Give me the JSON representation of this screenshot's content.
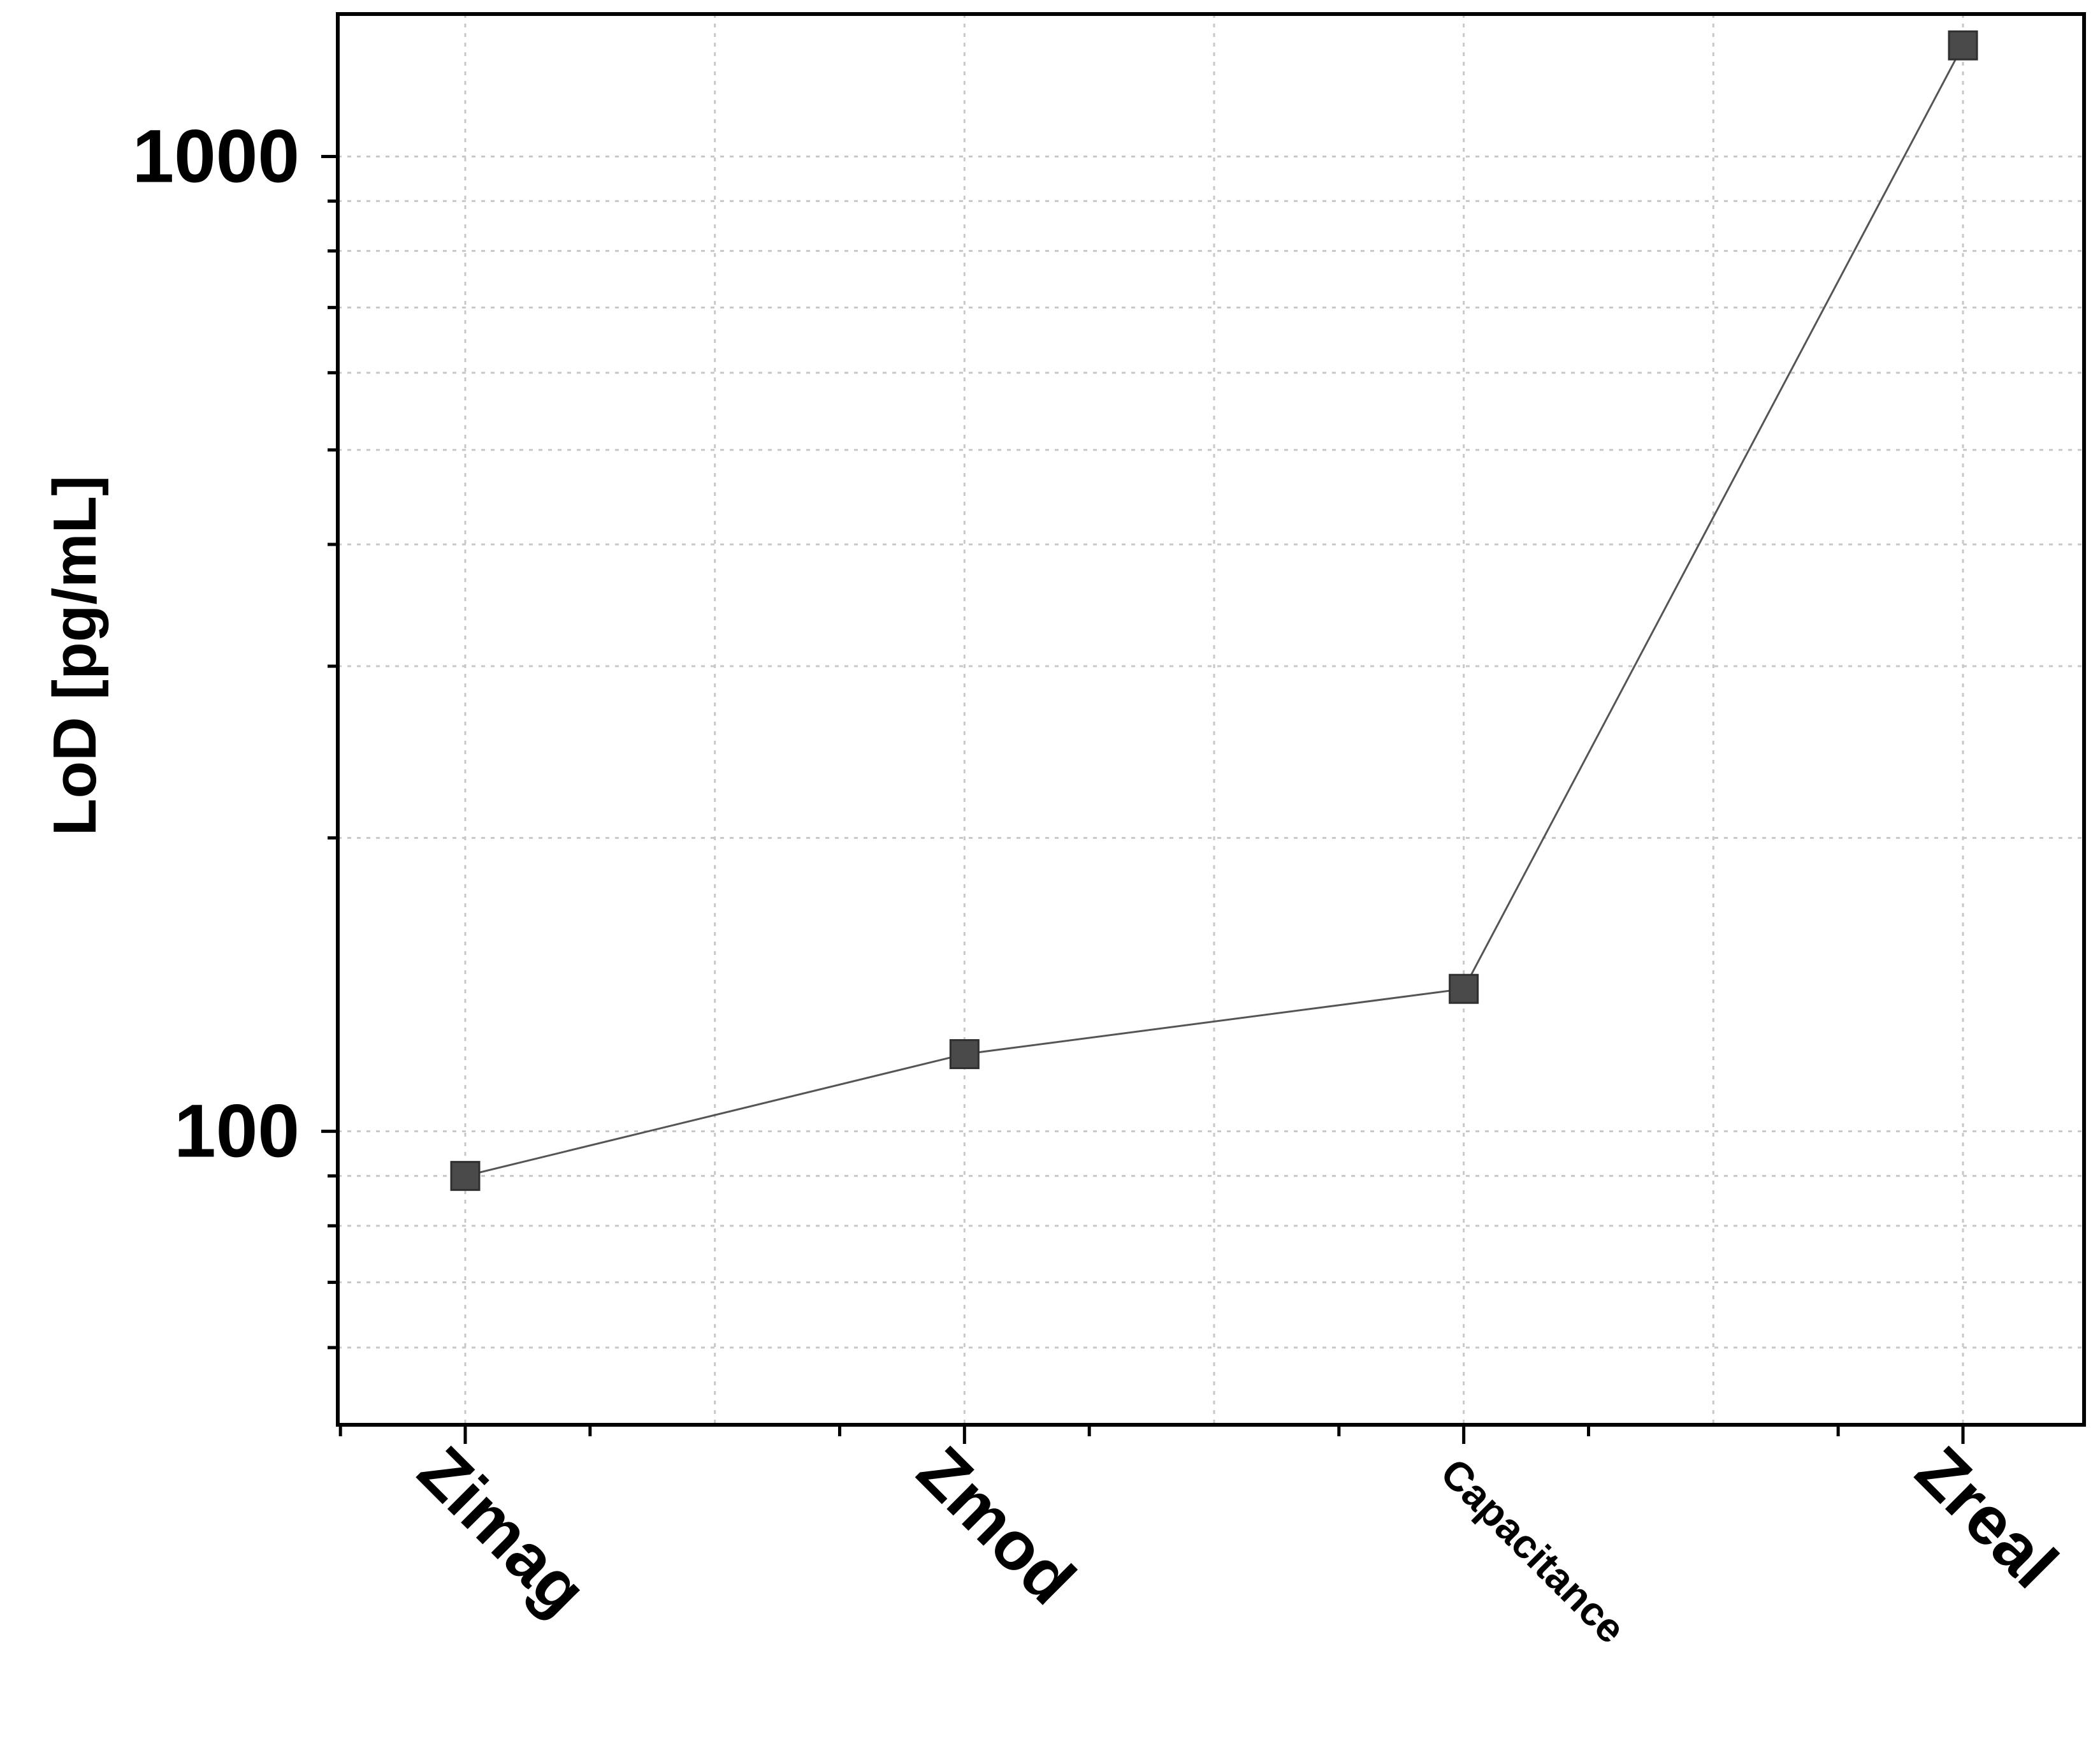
{
  "chart_data": {
    "type": "line",
    "title": "",
    "xlabel": "",
    "ylabel": "LoD [pg/mL]",
    "yscale": "log",
    "ylim": [
      50,
      1400
    ],
    "categories": [
      "Zimag",
      "Zmod",
      "Capacitance",
      "Zreal"
    ],
    "series": [
      {
        "values": [
          90,
          120,
          140,
          1300
        ]
      }
    ],
    "y_ticks": [
      {
        "value": 100,
        "label": "100"
      },
      {
        "value": 1000,
        "label": "1000"
      }
    ],
    "grid": true,
    "legend": "none",
    "colors": {
      "marker": "#4a4a4a",
      "line": "#555555",
      "grid": "#c8c8c8",
      "axis": "#000000"
    }
  }
}
